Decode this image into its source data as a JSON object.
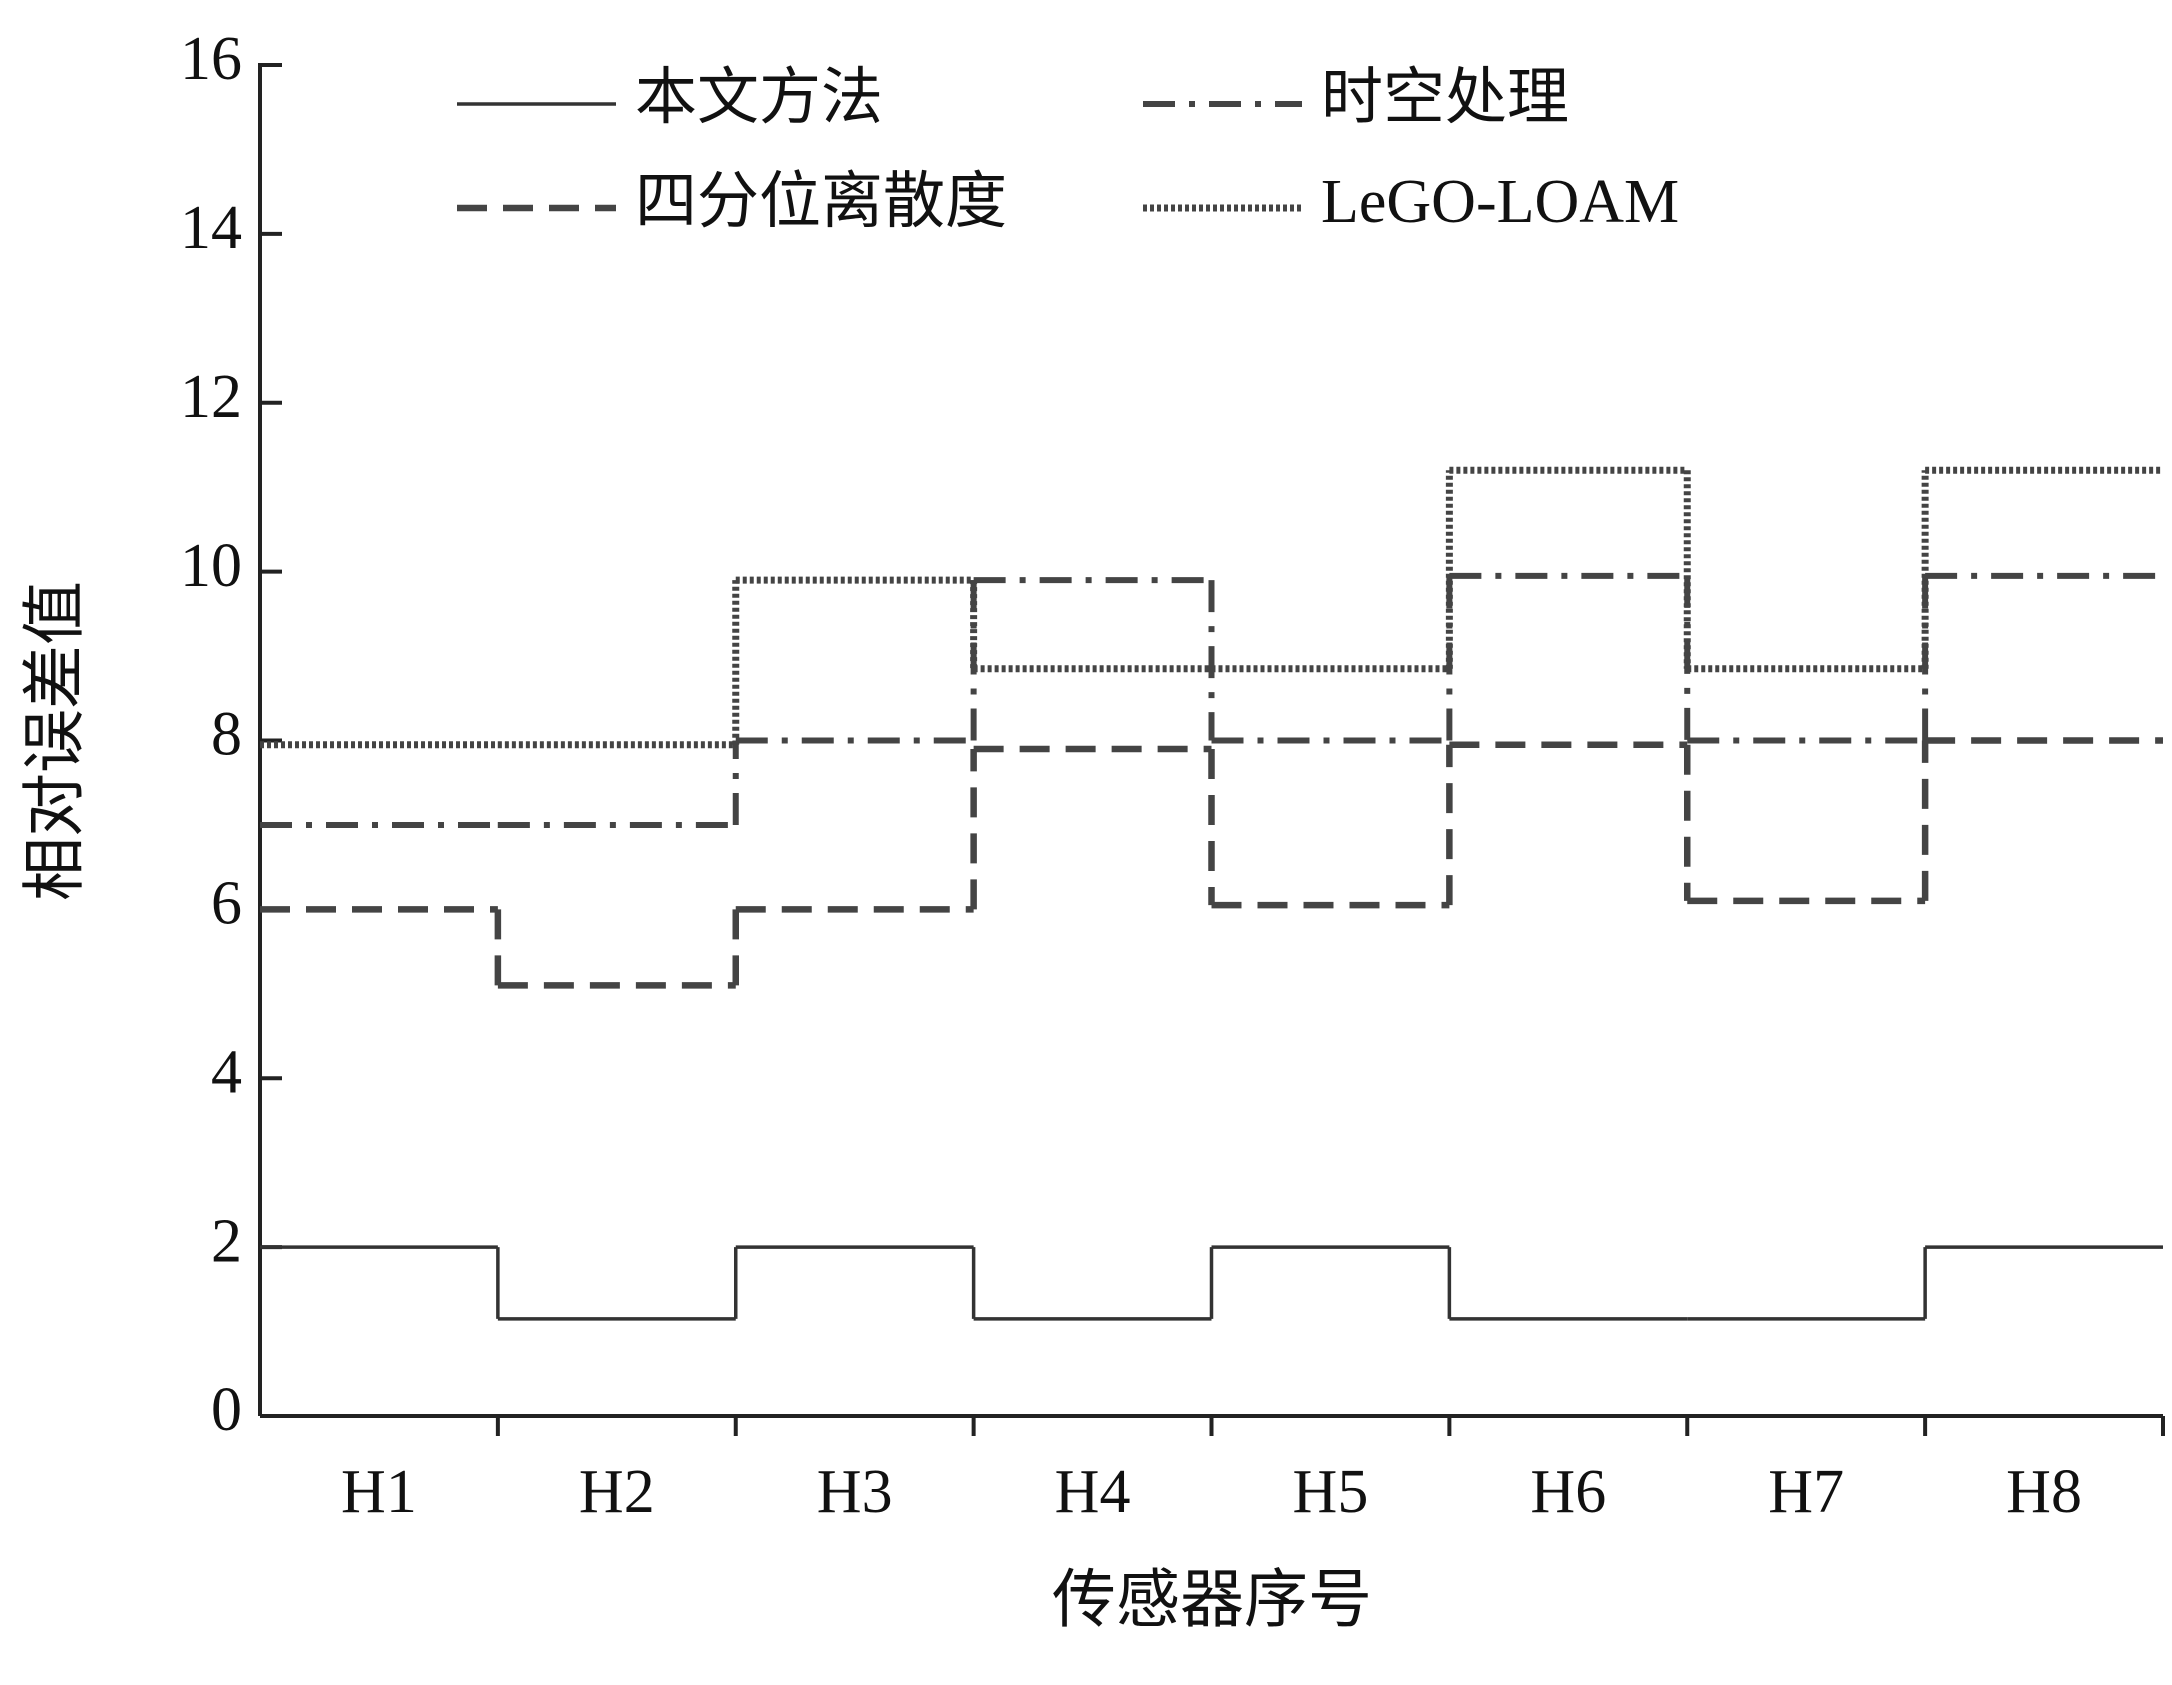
{
  "chart_data": {
    "type": "step",
    "x_label": "传感器序号",
    "y_label": "相对误差值",
    "categories": [
      "H1",
      "H2",
      "H3",
      "H4",
      "H5",
      "H6",
      "H7",
      "H8"
    ],
    "ylim": [
      0,
      16
    ],
    "yticks": [
      0,
      2,
      4,
      6,
      8,
      10,
      12,
      14,
      16
    ],
    "series": [
      {
        "name": "本文方法",
        "color": "#333333",
        "line_style": "solid",
        "values": [
          2,
          1.15,
          2,
          1.15,
          2,
          1.15,
          1.15,
          2
        ]
      },
      {
        "name": "时空处理",
        "color": "#444444",
        "line_style": "dash-dot",
        "values": [
          7,
          7,
          8,
          9.9,
          8,
          9.95,
          8,
          9.95
        ]
      },
      {
        "name": "四分位离散度",
        "color": "#444444",
        "line_style": "dashed",
        "values": [
          6,
          5.1,
          6,
          7.9,
          6.05,
          7.95,
          6.1,
          8
        ]
      },
      {
        "name": "LeGO-LOAM",
        "color": "#444444",
        "line_style": "dotted",
        "values": [
          7.95,
          7.95,
          9.9,
          8.85,
          8.85,
          11.2,
          8.85,
          11.2
        ]
      }
    ]
  }
}
